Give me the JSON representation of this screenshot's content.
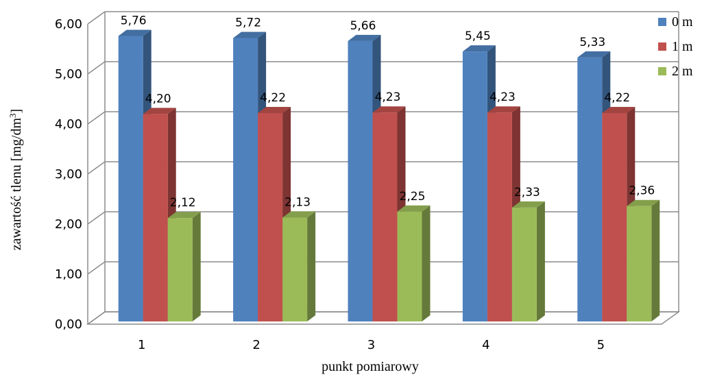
{
  "chart_data": {
    "type": "bar",
    "categories": [
      "1",
      "2",
      "3",
      "4",
      "5"
    ],
    "series": [
      {
        "name": "0 m",
        "values": [
          5.76,
          5.72,
          5.66,
          5.45,
          5.33
        ],
        "labels": [
          "5,76",
          "5,72",
          "5,66",
          "5,45",
          "5,33"
        ],
        "color": "#4F81BD"
      },
      {
        "name": "1 m",
        "values": [
          4.2,
          4.22,
          4.23,
          4.23,
          4.22
        ],
        "labels": [
          "4,20",
          "4,22",
          "4,23",
          "4,23",
          "4,22"
        ],
        "color": "#C0504D"
      },
      {
        "name": "2 m",
        "values": [
          2.12,
          2.13,
          2.25,
          2.33,
          2.36
        ],
        "labels": [
          "2,12",
          "2,13",
          "2,25",
          "2,33",
          "2,36"
        ],
        "color": "#9BBB59"
      }
    ],
    "title": "",
    "xlabel": "punkt pomiarowy",
    "ylabel_text": "zawartość tlenu [mg/dm",
    "ylabel_sup": "3",
    "ylabel_end": "]",
    "ylim": [
      0,
      6
    ],
    "yticks": [
      "0,00",
      "1,00",
      "2,00",
      "3,00",
      "4,00",
      "5,00",
      "6,00"
    ],
    "grid": true,
    "legend_position": "right"
  }
}
